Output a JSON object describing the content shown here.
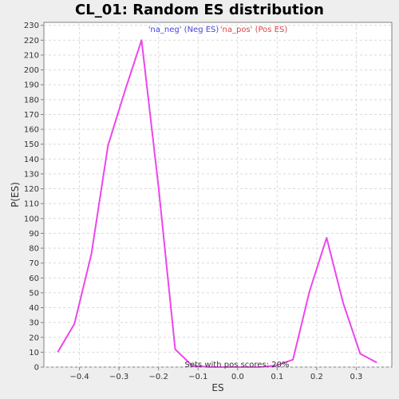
{
  "chart_data": {
    "type": "line",
    "title": "CL_01: Random ES distribution",
    "xlabel": "ES",
    "ylabel": "P(ES)",
    "xlim": [
      -0.49,
      0.39
    ],
    "ylim": [
      0,
      232
    ],
    "xticks": [
      -0.4,
      -0.3,
      -0.2,
      -0.1,
      0.0,
      0.1,
      0.2,
      0.3
    ],
    "xtick_labels": [
      "−0.4",
      "−0.3",
      "−0.2",
      "−0.1",
      "0.0",
      "0.1",
      "0.2",
      "0.3"
    ],
    "yticks": [
      0,
      10,
      20,
      30,
      40,
      50,
      60,
      70,
      80,
      90,
      100,
      110,
      120,
      130,
      140,
      150,
      160,
      170,
      180,
      190,
      200,
      210,
      220,
      230
    ],
    "grid": true,
    "legend": {
      "placement": "top-center",
      "entries": [
        {
          "label": "'na_neg' (Neg ES)",
          "color": "#4444dd"
        },
        {
          "label": "'na_pos' (Pos ES)",
          "color": "#dd4444"
        }
      ]
    },
    "annotation": "Sets with pos scores: 20%",
    "series": [
      {
        "color": "#ee44ee",
        "x": [
          -0.455,
          -0.413,
          -0.37,
          -0.328,
          -0.285,
          -0.243,
          -0.2,
          -0.158,
          -0.115,
          -0.073,
          -0.03,
          0.012,
          0.055,
          0.097,
          0.14,
          0.182,
          0.225,
          0.267,
          0.31,
          0.352
        ],
        "y": [
          10,
          29,
          76,
          149,
          186,
          220,
          121,
          12,
          1,
          0,
          0,
          0,
          0,
          1,
          5,
          51,
          87,
          43,
          9,
          3
        ]
      }
    ]
  }
}
